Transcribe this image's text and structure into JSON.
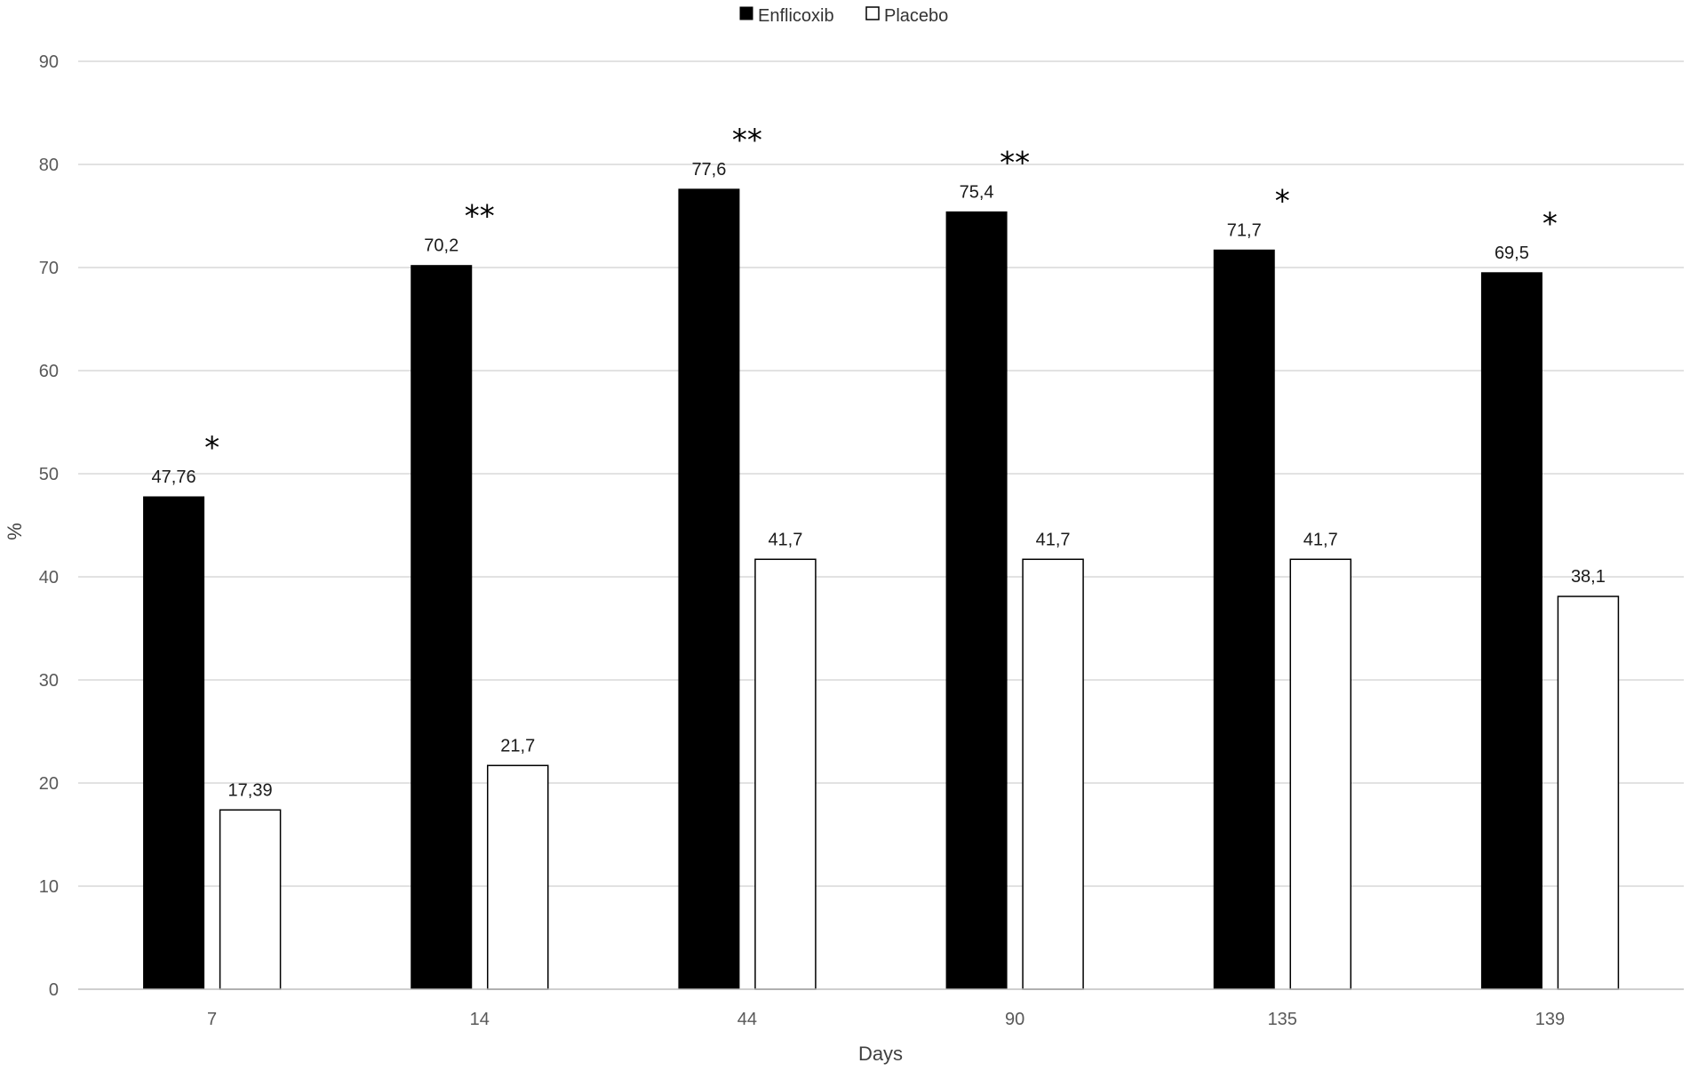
{
  "chart_data": {
    "type": "bar",
    "title": "",
    "xlabel": "Days",
    "ylabel": "%",
    "categories": [
      "7",
      "14",
      "44",
      "90",
      "135",
      "139"
    ],
    "series": [
      {
        "name": "Enflicoxib",
        "values": [
          47.76,
          70.2,
          77.6,
          75.4,
          71.7,
          69.5
        ],
        "labels": [
          "47,76",
          "70,2",
          "77,6",
          "75,4",
          "71,7",
          "69,5"
        ],
        "color": "#000000"
      },
      {
        "name": "Placebo",
        "values": [
          17.39,
          21.7,
          41.7,
          41.7,
          41.7,
          38.1
        ],
        "labels": [
          "17,39",
          "21,7",
          "41,7",
          "41,7",
          "41,7",
          "38,1"
        ],
        "color": "#ffffff"
      }
    ],
    "significance": [
      "*",
      "**",
      "**",
      "**",
      "*",
      "*"
    ],
    "ylim": [
      0,
      90
    ],
    "yticks": [
      0,
      10,
      20,
      30,
      40,
      50,
      60,
      70,
      80,
      90
    ],
    "grid": true,
    "legend_position": "top-center"
  }
}
